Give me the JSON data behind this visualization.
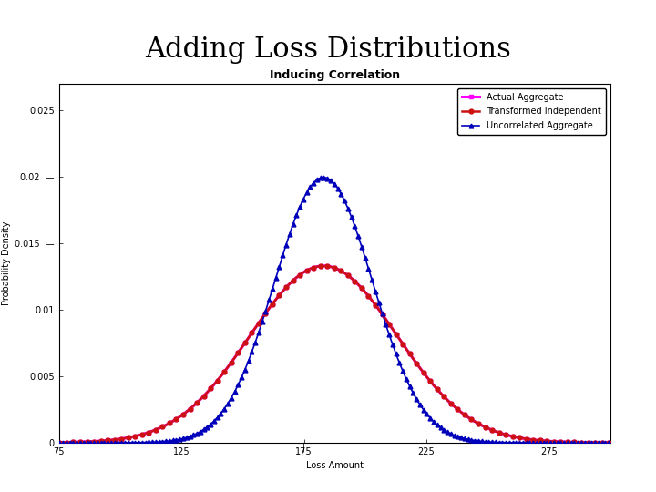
{
  "title": "Adding Loss Distributions",
  "subtitle": "Inducing Correlation",
  "xlabel": "Loss Amount",
  "ylabel": "Probability Density",
  "xlim": [
    75,
    300
  ],
  "ylim": [
    0,
    0.027
  ],
  "xticks": [
    75,
    125,
    175,
    225,
    275
  ],
  "yticks": [
    0,
    0.005,
    0.01,
    0.015,
    0.02,
    0.025
  ],
  "ytick_labels": [
    "0",
    "0.005",
    "0.01",
    "0.015 —",
    "0.02 —",
    "0.025"
  ],
  "curves": [
    {
      "label": "Actual Aggregate",
      "color": "#FF00FF",
      "mu": 183,
      "sigma": 30,
      "marker": "s",
      "linewidth": 2.2,
      "markersize": 3.5,
      "markevery": 10
    },
    {
      "label": "Transformed Independent",
      "color": "#CC1111",
      "mu": 183,
      "sigma": 30,
      "marker": "o",
      "linewidth": 1.8,
      "markersize": 3.5,
      "markevery": 10
    },
    {
      "label": "Uncorrelated Aggregate",
      "color": "#0000BB",
      "mu": 183,
      "sigma": 20,
      "marker": "^",
      "linewidth": 1.2,
      "markersize": 3.5,
      "markevery": 5
    }
  ],
  "title_fontsize": 22,
  "subtitle_fontsize": 9,
  "axis_label_fontsize": 7,
  "tick_fontsize": 7,
  "legend_fontsize": 7,
  "background_color": "#ffffff"
}
